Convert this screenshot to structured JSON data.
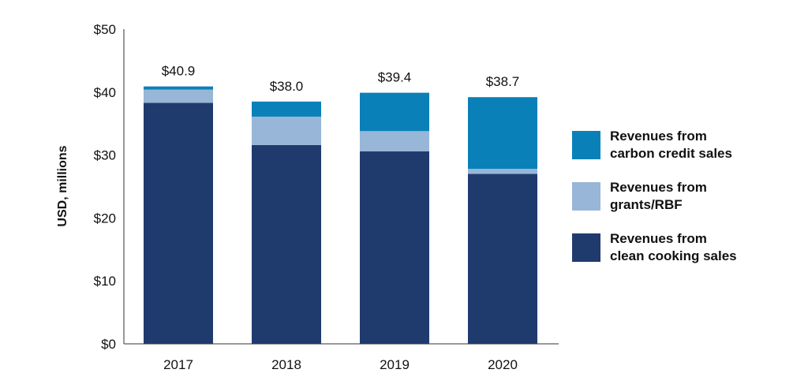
{
  "chart_data": {
    "type": "bar",
    "stacked": true,
    "categories": [
      "2017",
      "2018",
      "2019",
      "2020"
    ],
    "series": [
      {
        "name": "Revenues from clean cooking sales",
        "values": [
          38.3,
          31.6,
          30.6,
          27.0
        ],
        "color": "#1f3b6e"
      },
      {
        "name": "Revenues from grants/RBF",
        "values": [
          2.1,
          4.5,
          3.2,
          0.8
        ],
        "color": "#98b6d7"
      },
      {
        "name": "Revenues from carbon credit sales",
        "values": [
          0.5,
          2.4,
          6.1,
          11.4
        ],
        "color": "#0a80b8"
      }
    ],
    "totals": [
      "$40.9",
      "$38.0",
      "$39.4",
      "$38.7"
    ],
    "ylabel": "USD, millions",
    "yticks": [
      "$0",
      "$10",
      "$20",
      "$30",
      "$40",
      "$50"
    ],
    "ytick_values": [
      0,
      10,
      20,
      30,
      40,
      50
    ],
    "ylim": [
      0,
      50
    ],
    "grid": false,
    "legend_position": "right",
    "legend": [
      {
        "line1": "Revenues from",
        "line2": "carbon credit sales",
        "color": "#0a80b8"
      },
      {
        "line1": "Revenues from",
        "line2": "grants/RBF",
        "color": "#98b6d7"
      },
      {
        "line1": "Revenues from",
        "line2": "clean cooking sales",
        "color": "#1f3b6e"
      }
    ]
  }
}
